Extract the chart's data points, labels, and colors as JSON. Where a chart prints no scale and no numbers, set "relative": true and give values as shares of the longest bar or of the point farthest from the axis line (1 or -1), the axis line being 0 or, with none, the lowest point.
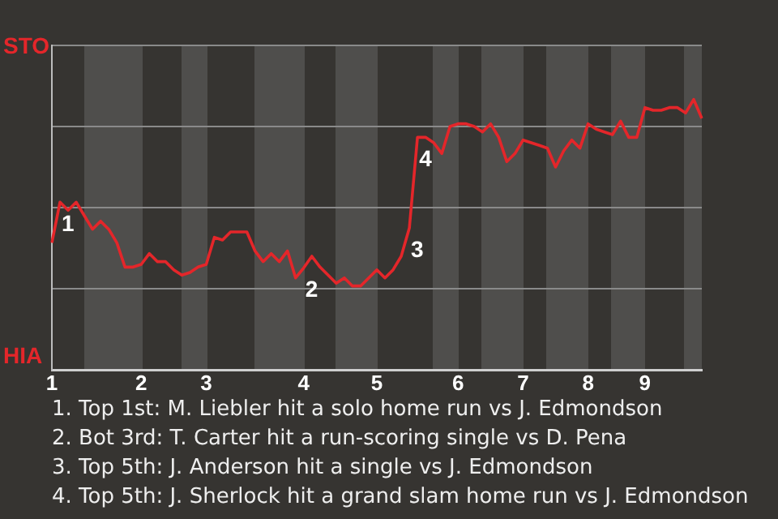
{
  "chart_data": {
    "type": "line",
    "relative": true,
    "categories": [
      "1",
      null,
      null,
      null,
      null,
      null,
      null,
      null,
      null,
      null,
      null,
      "2",
      null,
      null,
      null,
      null,
      null,
      null,
      null,
      "3",
      null,
      null,
      null,
      null,
      null,
      null,
      null,
      null,
      null,
      null,
      null,
      "4",
      null,
      null,
      null,
      null,
      null,
      null,
      null,
      null,
      "5",
      null,
      null,
      null,
      null,
      null,
      null,
      null,
      null,
      null,
      "6",
      null,
      null,
      null,
      null,
      null,
      null,
      null,
      "7",
      null,
      null,
      null,
      null,
      null,
      null,
      null,
      "8",
      null,
      null,
      null,
      null,
      null,
      null,
      "9",
      null,
      null,
      null,
      null,
      null,
      null,
      null
    ],
    "grid": "y",
    "legend": false,
    "marker": "none",
    "line_style": "solid",
    "series": [
      {
        "color": "#e4262a",
        "values": [
          0.47,
          0.62,
          0.59,
          0.62,
          0.57,
          0.52,
          0.55,
          0.52,
          0.47,
          0.38,
          0.38,
          0.39,
          0.43,
          0.4,
          0.4,
          0.37,
          0.35,
          0.36,
          0.38,
          0.39,
          0.49,
          0.48,
          0.51,
          0.51,
          0.51,
          0.44,
          0.4,
          0.43,
          0.4,
          0.44,
          0.34,
          0.377,
          0.42,
          0.38,
          0.35,
          0.32,
          0.34,
          0.31,
          0.31,
          0.34,
          0.37,
          0.34,
          0.37,
          0.42,
          0.524,
          0.86,
          0.86,
          0.84,
          0.8,
          0.9,
          0.91,
          0.91,
          0.9,
          0.88,
          0.91,
          0.86,
          0.77,
          0.8,
          0.85,
          0.84,
          0.83,
          0.82,
          0.75,
          0.81,
          0.85,
          0.82,
          0.91,
          0.89,
          0.88,
          0.87,
          0.92,
          0.86,
          0.86,
          0.97,
          0.96,
          0.96,
          0.97,
          0.97,
          0.95,
          1,
          0.93
        ]
      }
    ],
    "annotations": [
      "STO",
      "HIA",
      {
        "text": "1",
        "y": 0.62
      },
      {
        "text": "2",
        "y": 0.377
      },
      {
        "text": "3",
        "y": 0.524
      },
      {
        "text": "4",
        "y": 0.86
      },
      "1. Top 1st: M. Liebler hit a solo home run vs J. Edmondson",
      "2. Bot 3rd: T. Carter hit a run-scoring single vs D. Pena",
      "3. Top 5th: J. Anderson hit a single vs J. Edmondson",
      "4. Top 5th: J. Sherlock hit a grand slam home run vs J. Edmondson"
    ]
  }
}
